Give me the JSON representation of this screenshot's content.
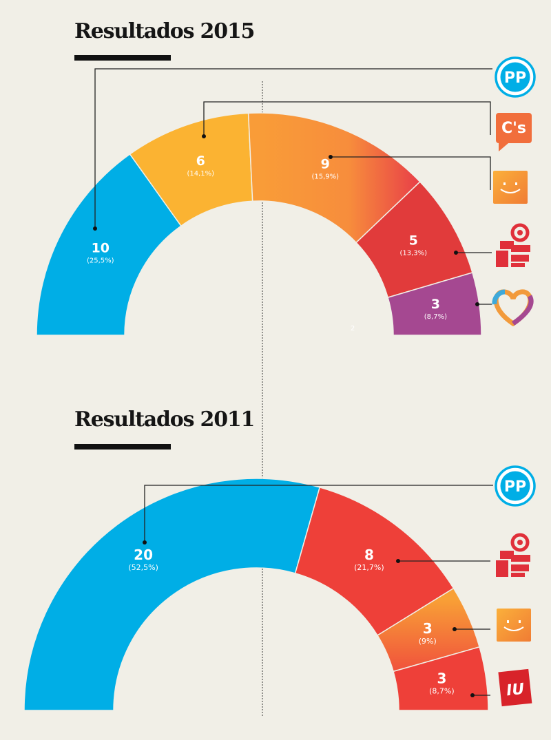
{
  "chart_data": [
    {
      "type": "parliament-semicircle",
      "title": "Resultados 2015",
      "series": [
        {
          "party": "PP",
          "seats": "10",
          "pct": "(25,5%)",
          "seats_value": 10,
          "share": 25.5,
          "color": "#00aee6",
          "icon": "pp-logo-icon"
        },
        {
          "party": "Ciudadanos",
          "seats": "6",
          "pct": "(14,1%)",
          "seats_value": 6,
          "share": 14.1,
          "color": "#fbb332",
          "icon": "ciudadanos-logo-icon"
        },
        {
          "party": "Ganemos",
          "seats": "9",
          "pct": "(15,9%)",
          "seats_value": 9,
          "share": 15.9,
          "color": "#f89a3a",
          "color_end": "#ee4a43",
          "icon": "smile-logo-icon"
        },
        {
          "party": "PSOE",
          "seats": "5",
          "pct": "(13,3%)",
          "seats_value": 5,
          "share": 13.3,
          "color": "#e13b3b",
          "icon": "psoe-rose-icon"
        },
        {
          "party": "Heart",
          "seats": "3",
          "pct": "(8,7%)",
          "seats_value": 3,
          "share": 8.7,
          "color": "#a54891",
          "icon": "heart-logo-icon"
        }
      ],
      "annotation": "2"
    },
    {
      "type": "parliament-semicircle",
      "title": "Resultados 2011",
      "series": [
        {
          "party": "PP",
          "seats": "20",
          "pct": "(52,5%)",
          "seats_value": 20,
          "share": 52.5,
          "color": "#00aee6",
          "icon": "pp-logo-icon"
        },
        {
          "party": "PSOE",
          "seats": "8",
          "pct": "(21,7%)",
          "seats_value": 8,
          "share": 21.7,
          "color": "#ee4039",
          "icon": "psoe-rose-icon"
        },
        {
          "party": "Smile",
          "seats": "3",
          "pct": "(9%)",
          "seats_value": 3,
          "share": 9,
          "color": "#f89a3a",
          "color_end": "#ee4a43",
          "icon": "smile-logo-icon"
        },
        {
          "party": "IU",
          "seats": "3",
          "pct": "(8,7%)",
          "seats_value": 3,
          "share": 8.7,
          "color": "#ee4039",
          "icon": "iu-logo-icon"
        }
      ]
    }
  ],
  "logos": {
    "pp": "PP",
    "cs": "C's",
    "iu": "IU",
    "ganemos_label": "Ganemos"
  }
}
